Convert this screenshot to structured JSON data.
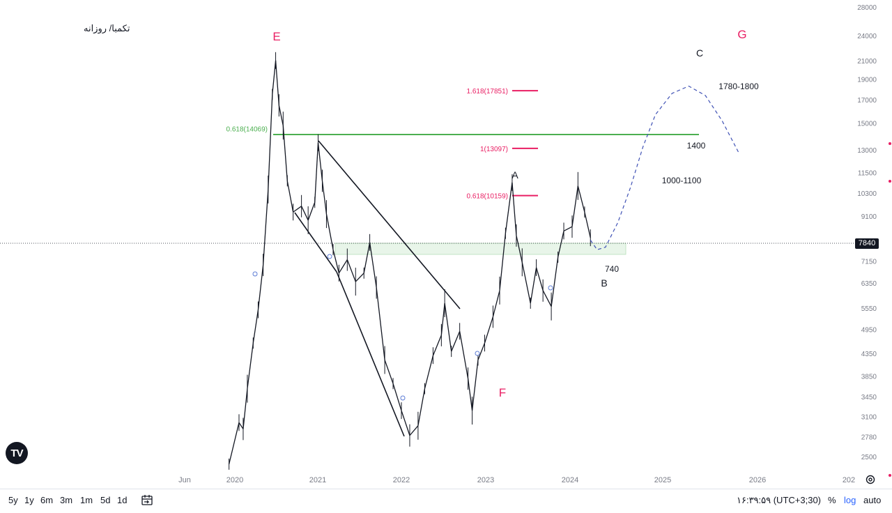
{
  "symbol": {
    "title": "تکمبا/ روزانه"
  },
  "colors": {
    "price": "#131722",
    "fib": "#e91e63",
    "green_level": "#4caf50",
    "wave_label_pink": "#e91e63",
    "zone_fill": "#e8f5e9"
  },
  "chart_data": {
    "type": "line",
    "title": "تکمبا/ روزانه",
    "y_scale": "log",
    "y_ticks": [
      "28000",
      "24000",
      "21000",
      "19000",
      "17000",
      "15000",
      "13000",
      "11500",
      "10300",
      "9100",
      "7150",
      "6350",
      "5550",
      "4950",
      "4350",
      "3850",
      "3450",
      "3100",
      "2780",
      "2500"
    ],
    "x_ticks": [
      "Jun",
      "2020",
      "2021",
      "2022",
      "2023",
      "2024",
      "2025",
      "2026",
      "202"
    ],
    "ylim": [
      2400,
      28000
    ],
    "current_price": "7840",
    "price_path": [
      {
        "t": 2019.93,
        "v": 2400
      },
      {
        "t": 2020.05,
        "v": 3000
      },
      {
        "t": 2020.1,
        "v": 2900
      },
      {
        "t": 2020.15,
        "v": 3600
      },
      {
        "t": 2020.22,
        "v": 4600
      },
      {
        "t": 2020.28,
        "v": 5500
      },
      {
        "t": 2020.34,
        "v": 7000
      },
      {
        "t": 2020.4,
        "v": 10500
      },
      {
        "t": 2020.45,
        "v": 17500
      },
      {
        "t": 2020.49,
        "v": 21000
      },
      {
        "t": 2020.53,
        "v": 16500
      },
      {
        "t": 2020.58,
        "v": 14800
      },
      {
        "t": 2020.63,
        "v": 11000
      },
      {
        "t": 2020.7,
        "v": 9300
      },
      {
        "t": 2020.8,
        "v": 9600
      },
      {
        "t": 2020.88,
        "v": 8900
      },
      {
        "t": 2020.96,
        "v": 9800
      },
      {
        "t": 2021.0,
        "v": 13500
      },
      {
        "t": 2021.05,
        "v": 11000
      },
      {
        "t": 2021.1,
        "v": 9200
      },
      {
        "t": 2021.18,
        "v": 7600
      },
      {
        "t": 2021.25,
        "v": 6700
      },
      {
        "t": 2021.35,
        "v": 7200
      },
      {
        "t": 2021.45,
        "v": 6400
      },
      {
        "t": 2021.55,
        "v": 6700
      },
      {
        "t": 2021.62,
        "v": 7900
      },
      {
        "t": 2021.7,
        "v": 6200
      },
      {
        "t": 2021.8,
        "v": 4200
      },
      {
        "t": 2021.9,
        "v": 3700
      },
      {
        "t": 2022.0,
        "v": 3200
      },
      {
        "t": 2022.1,
        "v": 2800
      },
      {
        "t": 2022.2,
        "v": 2950
      },
      {
        "t": 2022.28,
        "v": 3600
      },
      {
        "t": 2022.38,
        "v": 4300
      },
      {
        "t": 2022.48,
        "v": 4800
      },
      {
        "t": 2022.52,
        "v": 5700
      },
      {
        "t": 2022.6,
        "v": 4400
      },
      {
        "t": 2022.7,
        "v": 4900
      },
      {
        "t": 2022.8,
        "v": 3800
      },
      {
        "t": 2022.85,
        "v": 3200
      },
      {
        "t": 2022.92,
        "v": 4200
      },
      {
        "t": 2023.0,
        "v": 4600
      },
      {
        "t": 2023.1,
        "v": 5300
      },
      {
        "t": 2023.18,
        "v": 6100
      },
      {
        "t": 2023.25,
        "v": 8300
      },
      {
        "t": 2023.33,
        "v": 10900
      },
      {
        "t": 2023.38,
        "v": 8200
      },
      {
        "t": 2023.45,
        "v": 7100
      },
      {
        "t": 2023.55,
        "v": 5700
      },
      {
        "t": 2023.62,
        "v": 6900
      },
      {
        "t": 2023.7,
        "v": 6100
      },
      {
        "t": 2023.8,
        "v": 5600
      },
      {
        "t": 2023.88,
        "v": 7300
      },
      {
        "t": 2023.95,
        "v": 8400
      },
      {
        "t": 2024.05,
        "v": 8600
      },
      {
        "t": 2024.12,
        "v": 10700
      },
      {
        "t": 2024.2,
        "v": 9300
      },
      {
        "t": 2024.27,
        "v": 8100
      }
    ],
    "projection_path": [
      {
        "t": 2024.27,
        "v": 8000
      },
      {
        "t": 2024.35,
        "v": 7600
      },
      {
        "t": 2024.45,
        "v": 7700
      },
      {
        "t": 2024.6,
        "v": 8800
      },
      {
        "t": 2024.75,
        "v": 10600
      },
      {
        "t": 2024.9,
        "v": 13200
      },
      {
        "t": 2025.05,
        "v": 15700
      },
      {
        "t": 2025.25,
        "v": 17600
      },
      {
        "t": 2025.45,
        "v": 18300
      },
      {
        "t": 2025.65,
        "v": 17400
      },
      {
        "t": 2025.85,
        "v": 15200
      },
      {
        "t": 2026.05,
        "v": 12800
      }
    ],
    "fib_levels": [
      {
        "label": "1.618(17851)",
        "value": 17851
      },
      {
        "label": "1(13097)",
        "value": 13097
      },
      {
        "label": "0.618(10159)",
        "value": 10159
      }
    ],
    "green_level": {
      "label": "0.618(14069)",
      "value": 14069
    },
    "wave_labels": [
      {
        "text": "E",
        "color": "pink"
      },
      {
        "text": "A",
        "color": "dark"
      },
      {
        "text": "B",
        "color": "dark"
      },
      {
        "text": "C",
        "color": "dark"
      },
      {
        "text": "F",
        "color": "pink"
      },
      {
        "text": "G",
        "color": "pink"
      }
    ],
    "annotations": [
      "1780-1800",
      "1400",
      "1000-1100",
      "740"
    ]
  },
  "toolbar": {
    "ranges": [
      "5y",
      "1y",
      "6m",
      "3m",
      "1m",
      "5d",
      "1d"
    ],
    "time": "۱۶:۳۹:۵۹ (UTC+3;30)",
    "percent": "%",
    "log": "log",
    "auto": "auto"
  },
  "logo": {
    "text": "TV"
  }
}
